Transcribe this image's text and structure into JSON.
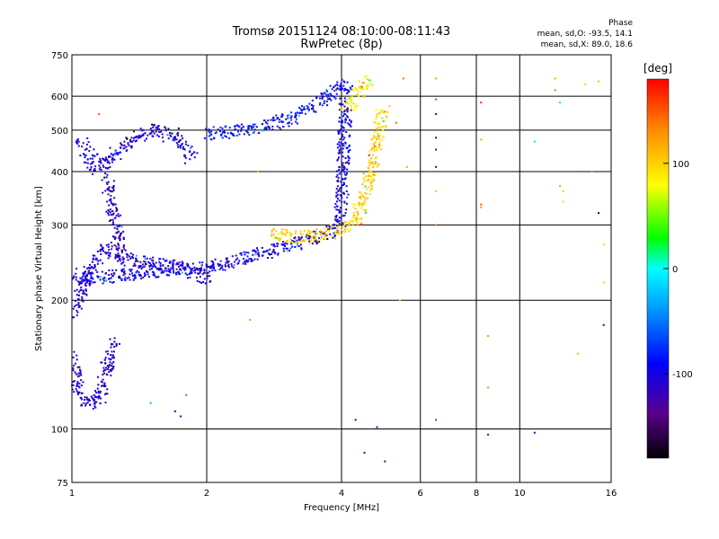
{
  "chart_data": {
    "type": "scatter",
    "title": "Tromsø 20151124 08:10:00-08:11:43",
    "subtitle": "RwPretec (8p)",
    "xlabel": "Frequency [MHz]",
    "ylabel": "Stationary phase Virtual Height [km]",
    "x_scale": "log",
    "y_scale": "log",
    "xlim": [
      1,
      16
    ],
    "ylim": [
      75,
      750
    ],
    "x_ticks": [
      1,
      2,
      4,
      6,
      8,
      10,
      16
    ],
    "y_ticks": [
      75,
      100,
      200,
      300,
      400,
      500,
      600,
      750
    ],
    "grid": true,
    "colorbar": {
      "label": "[deg]",
      "range": [
        -180,
        180
      ],
      "ticks": [
        100,
        0,
        -100
      ]
    },
    "phase_stats": {
      "heading": "Phase",
      "line_o": "mean, sd,O: -93.5, 14.1",
      "line_x": "mean, sd,X: 89.0, 18.6"
    },
    "traces": [
      {
        "name": "o_lower",
        "phase_mean": -100,
        "points": [
          [
            1.0,
            230
          ],
          [
            1.1,
            225
          ],
          [
            1.25,
            228
          ],
          [
            1.5,
            233
          ],
          [
            1.8,
            236
          ],
          [
            2.1,
            240
          ],
          [
            2.4,
            250
          ],
          [
            2.8,
            262
          ],
          [
            3.2,
            272
          ],
          [
            3.6,
            283
          ],
          [
            3.9,
            295
          ]
        ]
      },
      {
        "name": "o_low_spread",
        "phase_mean": -110,
        "points": [
          [
            1.0,
            185
          ],
          [
            1.03,
            200
          ],
          [
            1.06,
            215
          ],
          [
            1.1,
            240
          ],
          [
            1.15,
            255
          ],
          [
            1.2,
            265
          ],
          [
            1.3,
            250
          ],
          [
            1.5,
            245
          ],
          [
            1.7,
            240
          ],
          [
            2.0,
            225
          ]
        ]
      },
      {
        "name": "o_cusp",
        "phase_mean": -100,
        "points": [
          [
            3.95,
            300
          ],
          [
            4.0,
            340
          ],
          [
            4.02,
            380
          ],
          [
            4.04,
            420
          ],
          [
            4.05,
            470
          ],
          [
            4.07,
            520
          ],
          [
            4.08,
            580
          ],
          [
            4.1,
            640
          ]
        ]
      },
      {
        "name": "o_F2_upper",
        "phase_mean": -90,
        "points": [
          [
            2.0,
            490
          ],
          [
            2.3,
            495
          ],
          [
            2.6,
            505
          ],
          [
            2.9,
            520
          ],
          [
            3.2,
            540
          ],
          [
            3.5,
            570
          ],
          [
            3.8,
            610
          ],
          [
            4.0,
            640
          ]
        ]
      },
      {
        "name": "o_patch_upper",
        "phase_mean": -105,
        "points": [
          [
            1.05,
            470
          ],
          [
            1.1,
            430
          ],
          [
            1.15,
            405
          ],
          [
            1.2,
            420
          ],
          [
            1.3,
            455
          ],
          [
            1.5,
            500
          ],
          [
            1.7,
            490
          ],
          [
            1.85,
            430
          ]
        ]
      },
      {
        "name": "o_patch_mid",
        "phase_mean": -115,
        "points": [
          [
            1.2,
            380
          ],
          [
            1.22,
            340
          ],
          [
            1.25,
            305
          ],
          [
            1.27,
            280
          ],
          [
            1.3,
            260
          ]
        ]
      },
      {
        "name": "o_low_tail",
        "phase_mean": -110,
        "points": [
          [
            1.0,
            150
          ],
          [
            1.02,
            130
          ],
          [
            1.05,
            118
          ],
          [
            1.1,
            115
          ],
          [
            1.15,
            118
          ],
          [
            1.2,
            140
          ],
          [
            1.25,
            160
          ]
        ]
      },
      {
        "name": "x_trace",
        "phase_mean": 100,
        "points": [
          [
            2.8,
            285
          ],
          [
            3.2,
            280
          ],
          [
            3.6,
            285
          ],
          [
            4.0,
            292
          ],
          [
            4.3,
            310
          ],
          [
            4.5,
            350
          ],
          [
            4.65,
            400
          ],
          [
            4.8,
            460
          ],
          [
            4.9,
            530
          ],
          [
            5.0,
            560
          ]
        ]
      },
      {
        "name": "x_upper",
        "phase_mean": 85,
        "points": [
          [
            4.1,
            560
          ],
          [
            4.25,
            590
          ],
          [
            4.4,
            620
          ],
          [
            4.5,
            640
          ],
          [
            4.6,
            660
          ]
        ]
      }
    ],
    "scattered_points": [
      [
        6.5,
        660,
        120
      ],
      [
        6.5,
        590,
        160
      ],
      [
        6.5,
        545,
        -120
      ],
      [
        6.5,
        480,
        -100
      ],
      [
        6.5,
        450,
        -130
      ],
      [
        6.5,
        410,
        -110
      ],
      [
        6.5,
        360,
        60
      ],
      [
        6.5,
        300,
        140
      ],
      [
        6.5,
        105,
        -60
      ],
      [
        8.2,
        580,
        170
      ],
      [
        8.2,
        475,
        120
      ],
      [
        8.2,
        335,
        150
      ],
      [
        8.2,
        330,
        130
      ],
      [
        8.5,
        165,
        130
      ],
      [
        8.5,
        125,
        130
      ],
      [
        8.5,
        97,
        -140
      ],
      [
        10.8,
        470,
        20
      ],
      [
        10.8,
        98,
        -120
      ],
      [
        12.0,
        660,
        120
      ],
      [
        12.0,
        620,
        140
      ],
      [
        12.3,
        580,
        -10
      ],
      [
        12.3,
        370,
        120
      ],
      [
        12.5,
        360,
        110
      ],
      [
        12.5,
        340,
        100
      ],
      [
        14.0,
        640,
        100
      ],
      [
        14.5,
        400,
        130
      ],
      [
        15.0,
        650,
        110
      ],
      [
        15.0,
        320,
        -160
      ],
      [
        15.4,
        220,
        100
      ],
      [
        15.4,
        175,
        -110
      ],
      [
        15.4,
        270,
        100
      ],
      [
        13.5,
        150,
        110
      ],
      [
        5.5,
        660,
        140
      ],
      [
        5.3,
        520,
        140
      ],
      [
        5.6,
        410,
        120
      ],
      [
        5.4,
        200,
        60
      ],
      [
        5.0,
        84,
        -150
      ],
      [
        4.5,
        88,
        -120
      ],
      [
        4.8,
        101,
        -100
      ],
      [
        4.3,
        105,
        -150
      ],
      [
        1.5,
        115,
        -30
      ],
      [
        1.8,
        120,
        150
      ],
      [
        1.7,
        110,
        -110
      ],
      [
        1.75,
        107,
        -120
      ],
      [
        2.5,
        180,
        130
      ],
      [
        2.6,
        400,
        120
      ],
      [
        1.15,
        545,
        150
      ],
      [
        1.6,
        470,
        -100
      ]
    ]
  }
}
